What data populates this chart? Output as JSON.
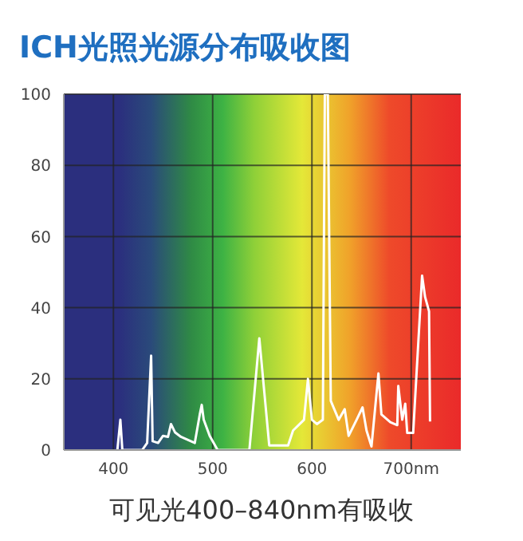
{
  "chart_data": {
    "type": "line",
    "title": "ICH光照光源分布吸收图",
    "annotations": [
      "可见光400–840nm有吸收"
    ],
    "xlim": [
      350,
      750
    ],
    "xticks": [
      400,
      500,
      600,
      {
        "value": 700,
        "label": "700nm"
      }
    ],
    "ylim": [
      0,
      100
    ],
    "yticks": [
      0,
      20,
      40,
      60,
      80,
      100
    ],
    "grid": true,
    "legend": false,
    "marker": "none",
    "line_style": "solid",
    "series": [
      {
        "color": "#ffffff",
        "x": [
          404,
          407,
          409,
          429,
          434,
          438,
          439.5,
          445,
          450,
          455,
          458,
          462,
          468,
          482,
          487,
          489,
          491,
          497,
          505,
          537,
          547,
          557,
          576,
          581,
          592,
          596,
          600,
          605,
          611,
          613,
          616,
          619,
          627,
          633,
          637,
          645,
          651,
          655,
          660,
          667,
          670,
          679,
          686,
          687,
          691,
          694,
          696,
          702,
          711,
          714,
          718,
          719
        ],
        "values": [
          0,
          8.5,
          0,
          0,
          2,
          26.5,
          2.5,
          2,
          4,
          3.7,
          7.3,
          5,
          3.7,
          2,
          10,
          12.7,
          8.5,
          4,
          0,
          0,
          31.4,
          1.3,
          1.3,
          5.5,
          8.5,
          20,
          8.5,
          7.3,
          8.5,
          100,
          100,
          13.8,
          8.5,
          11.5,
          4,
          8.5,
          12,
          5.5,
          1,
          21.5,
          10,
          7.8,
          7,
          18,
          8.5,
          13,
          4.8,
          4.8,
          49,
          43,
          39,
          8
        ]
      }
    ]
  }
}
